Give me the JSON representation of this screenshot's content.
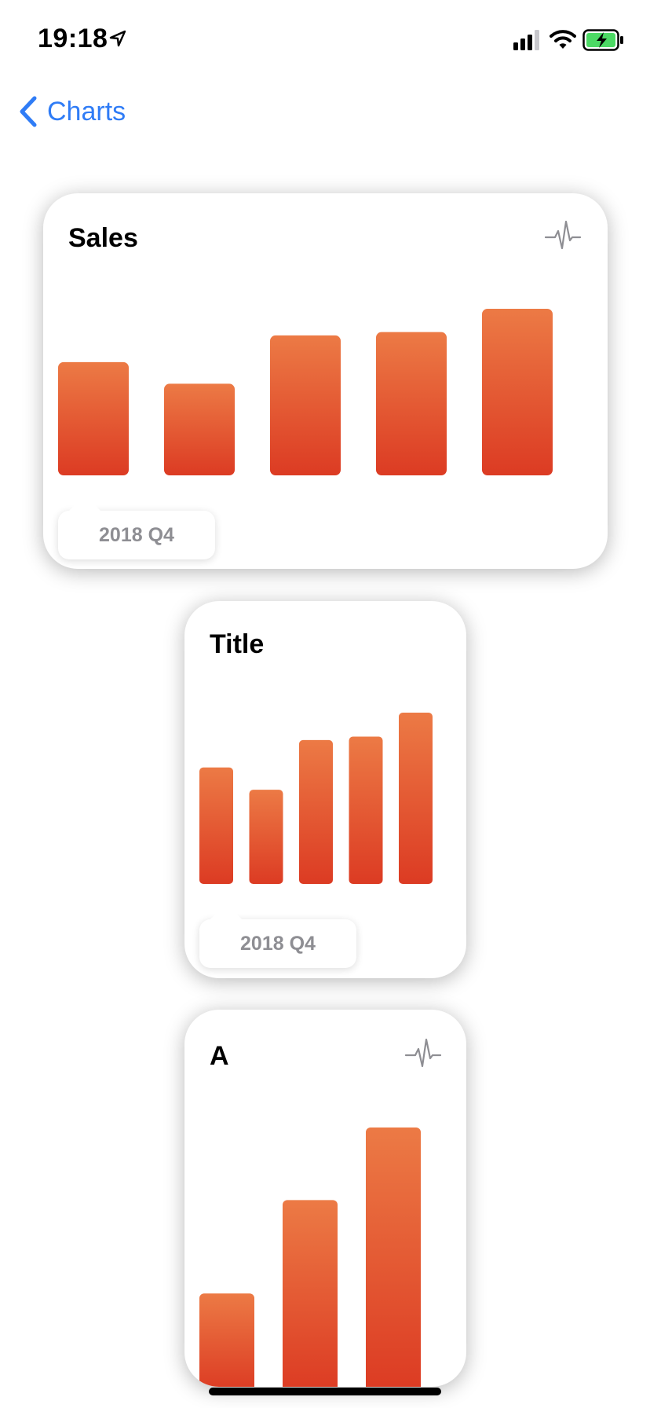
{
  "status_bar": {
    "time": "19:18"
  },
  "nav": {
    "back_label": "Charts"
  },
  "colors": {
    "accent": "#2f7cf6",
    "bar_top": "#ec7a45",
    "bar_bottom": "#dc3b23",
    "tooltip_text": "#8e8e93"
  },
  "cards": [
    {
      "title": "Sales",
      "icon": "pulse-icon",
      "tooltip": "2018 Q4"
    },
    {
      "title": "Title",
      "tooltip": "2018 Q4"
    },
    {
      "title": "A",
      "icon": "pulse-icon"
    }
  ],
  "chart_data": [
    {
      "type": "bar",
      "title": "Sales",
      "values": [
        68,
        55,
        84,
        86,
        100
      ],
      "ylim": [
        0,
        100
      ],
      "grid": false
    },
    {
      "type": "bar",
      "title": "Title",
      "values": [
        68,
        55,
        84,
        86,
        100
      ],
      "ylim": [
        0,
        100
      ],
      "grid": false
    },
    {
      "type": "bar",
      "title": "A",
      "values": [
        36,
        72,
        100
      ],
      "ylim": [
        0,
        100
      ],
      "grid": false
    }
  ]
}
